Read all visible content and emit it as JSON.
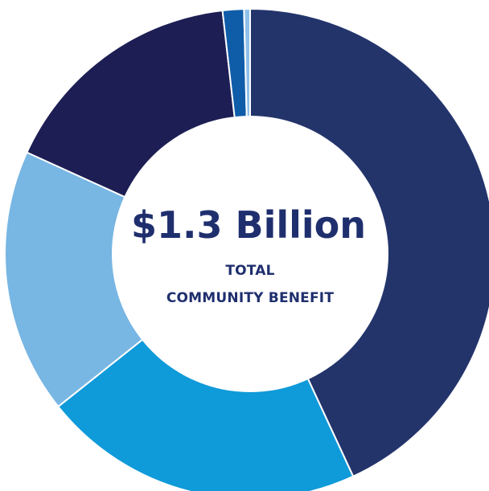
{
  "chart_data": {
    "type": "pie",
    "title": "",
    "center_label": {
      "value": "$1.3 Billion",
      "line1": "TOTAL",
      "line2": "COMMUNITY BENEFIT"
    },
    "slices": [
      {
        "value": 43.1,
        "color": "#23346b"
      },
      {
        "value": 21.2,
        "color": "#0f9ad9"
      },
      {
        "value": 17.5,
        "color": "#78b6e3"
      },
      {
        "value": 16.4,
        "color": "#1d1e54"
      },
      {
        "value": 1.4,
        "color": "#0f5ca8"
      },
      {
        "value": 0.4,
        "color": "#8fc0ea"
      }
    ]
  }
}
